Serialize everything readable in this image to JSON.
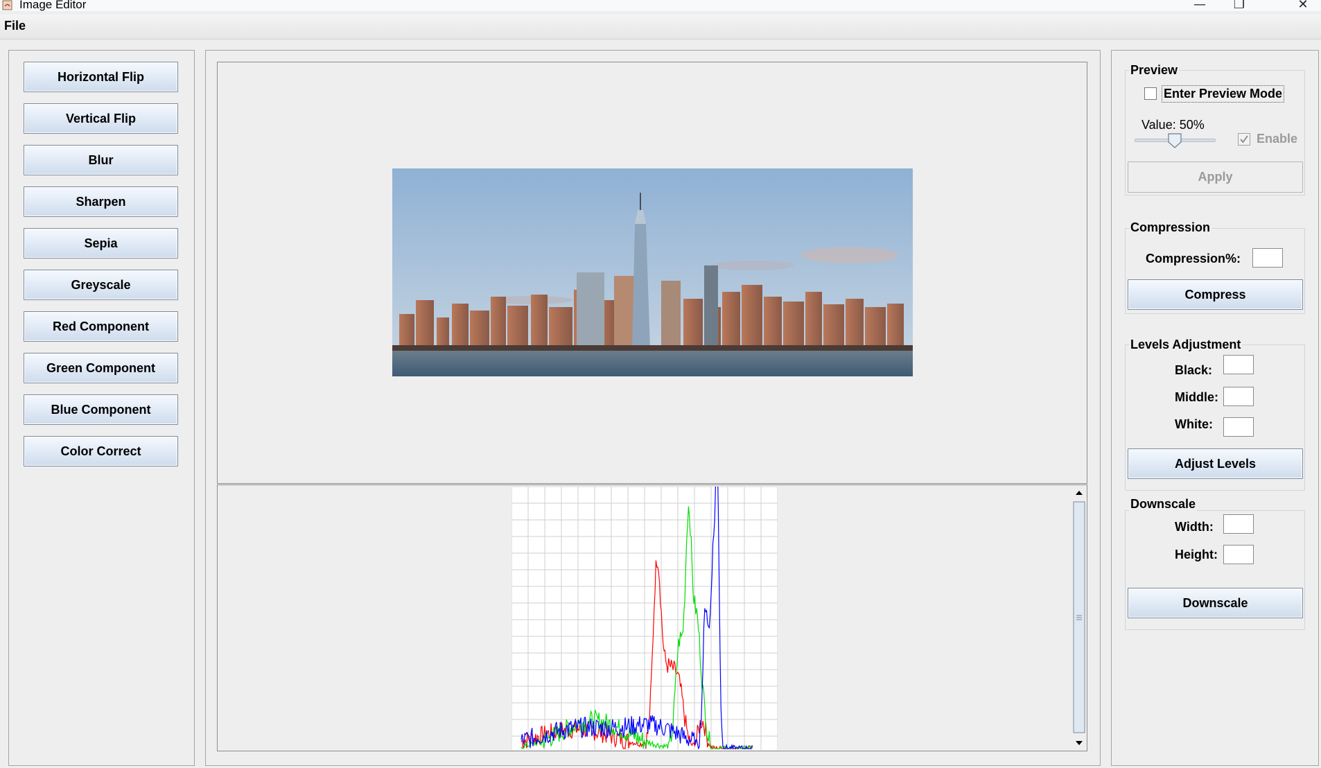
{
  "window": {
    "title": "Image Editor",
    "controls": {
      "minimize": "—",
      "maximize": "❐",
      "close": "✕"
    }
  },
  "menu": {
    "file": "File"
  },
  "operations": [
    "Horizontal Flip",
    "Vertical Flip",
    "Blur",
    "Sharpen",
    "Sepia",
    "Greyscale",
    "Red Component",
    "Green Component",
    "Blue Component",
    "Color Correct"
  ],
  "preview": {
    "title": "Preview",
    "checkbox_label": "Enter Preview Mode",
    "checked": false,
    "value_label": "Value: 50%",
    "slider_value_percent": 50,
    "enable_label": "Enable",
    "enable_checked": true,
    "apply_label": "Apply"
  },
  "compression": {
    "title": "Compression",
    "field_label": "Compression%:",
    "field_value": "",
    "button": "Compress"
  },
  "levels": {
    "title": "Levels Adjustment",
    "black_label": "Black:",
    "middle_label": "Middle:",
    "white_label": "White:",
    "black_value": "",
    "middle_value": "",
    "white_value": "",
    "button": "Adjust Levels"
  },
  "downscale": {
    "title": "Downscale",
    "width_label": "Width:",
    "height_label": "Height:",
    "width_value": "",
    "height_value": "",
    "button": "Downscale"
  },
  "histogram": {
    "colors": {
      "red": "#ff0000",
      "green": "#00dd00",
      "blue": "#0000ff",
      "grid": "#cfcfcf"
    }
  }
}
